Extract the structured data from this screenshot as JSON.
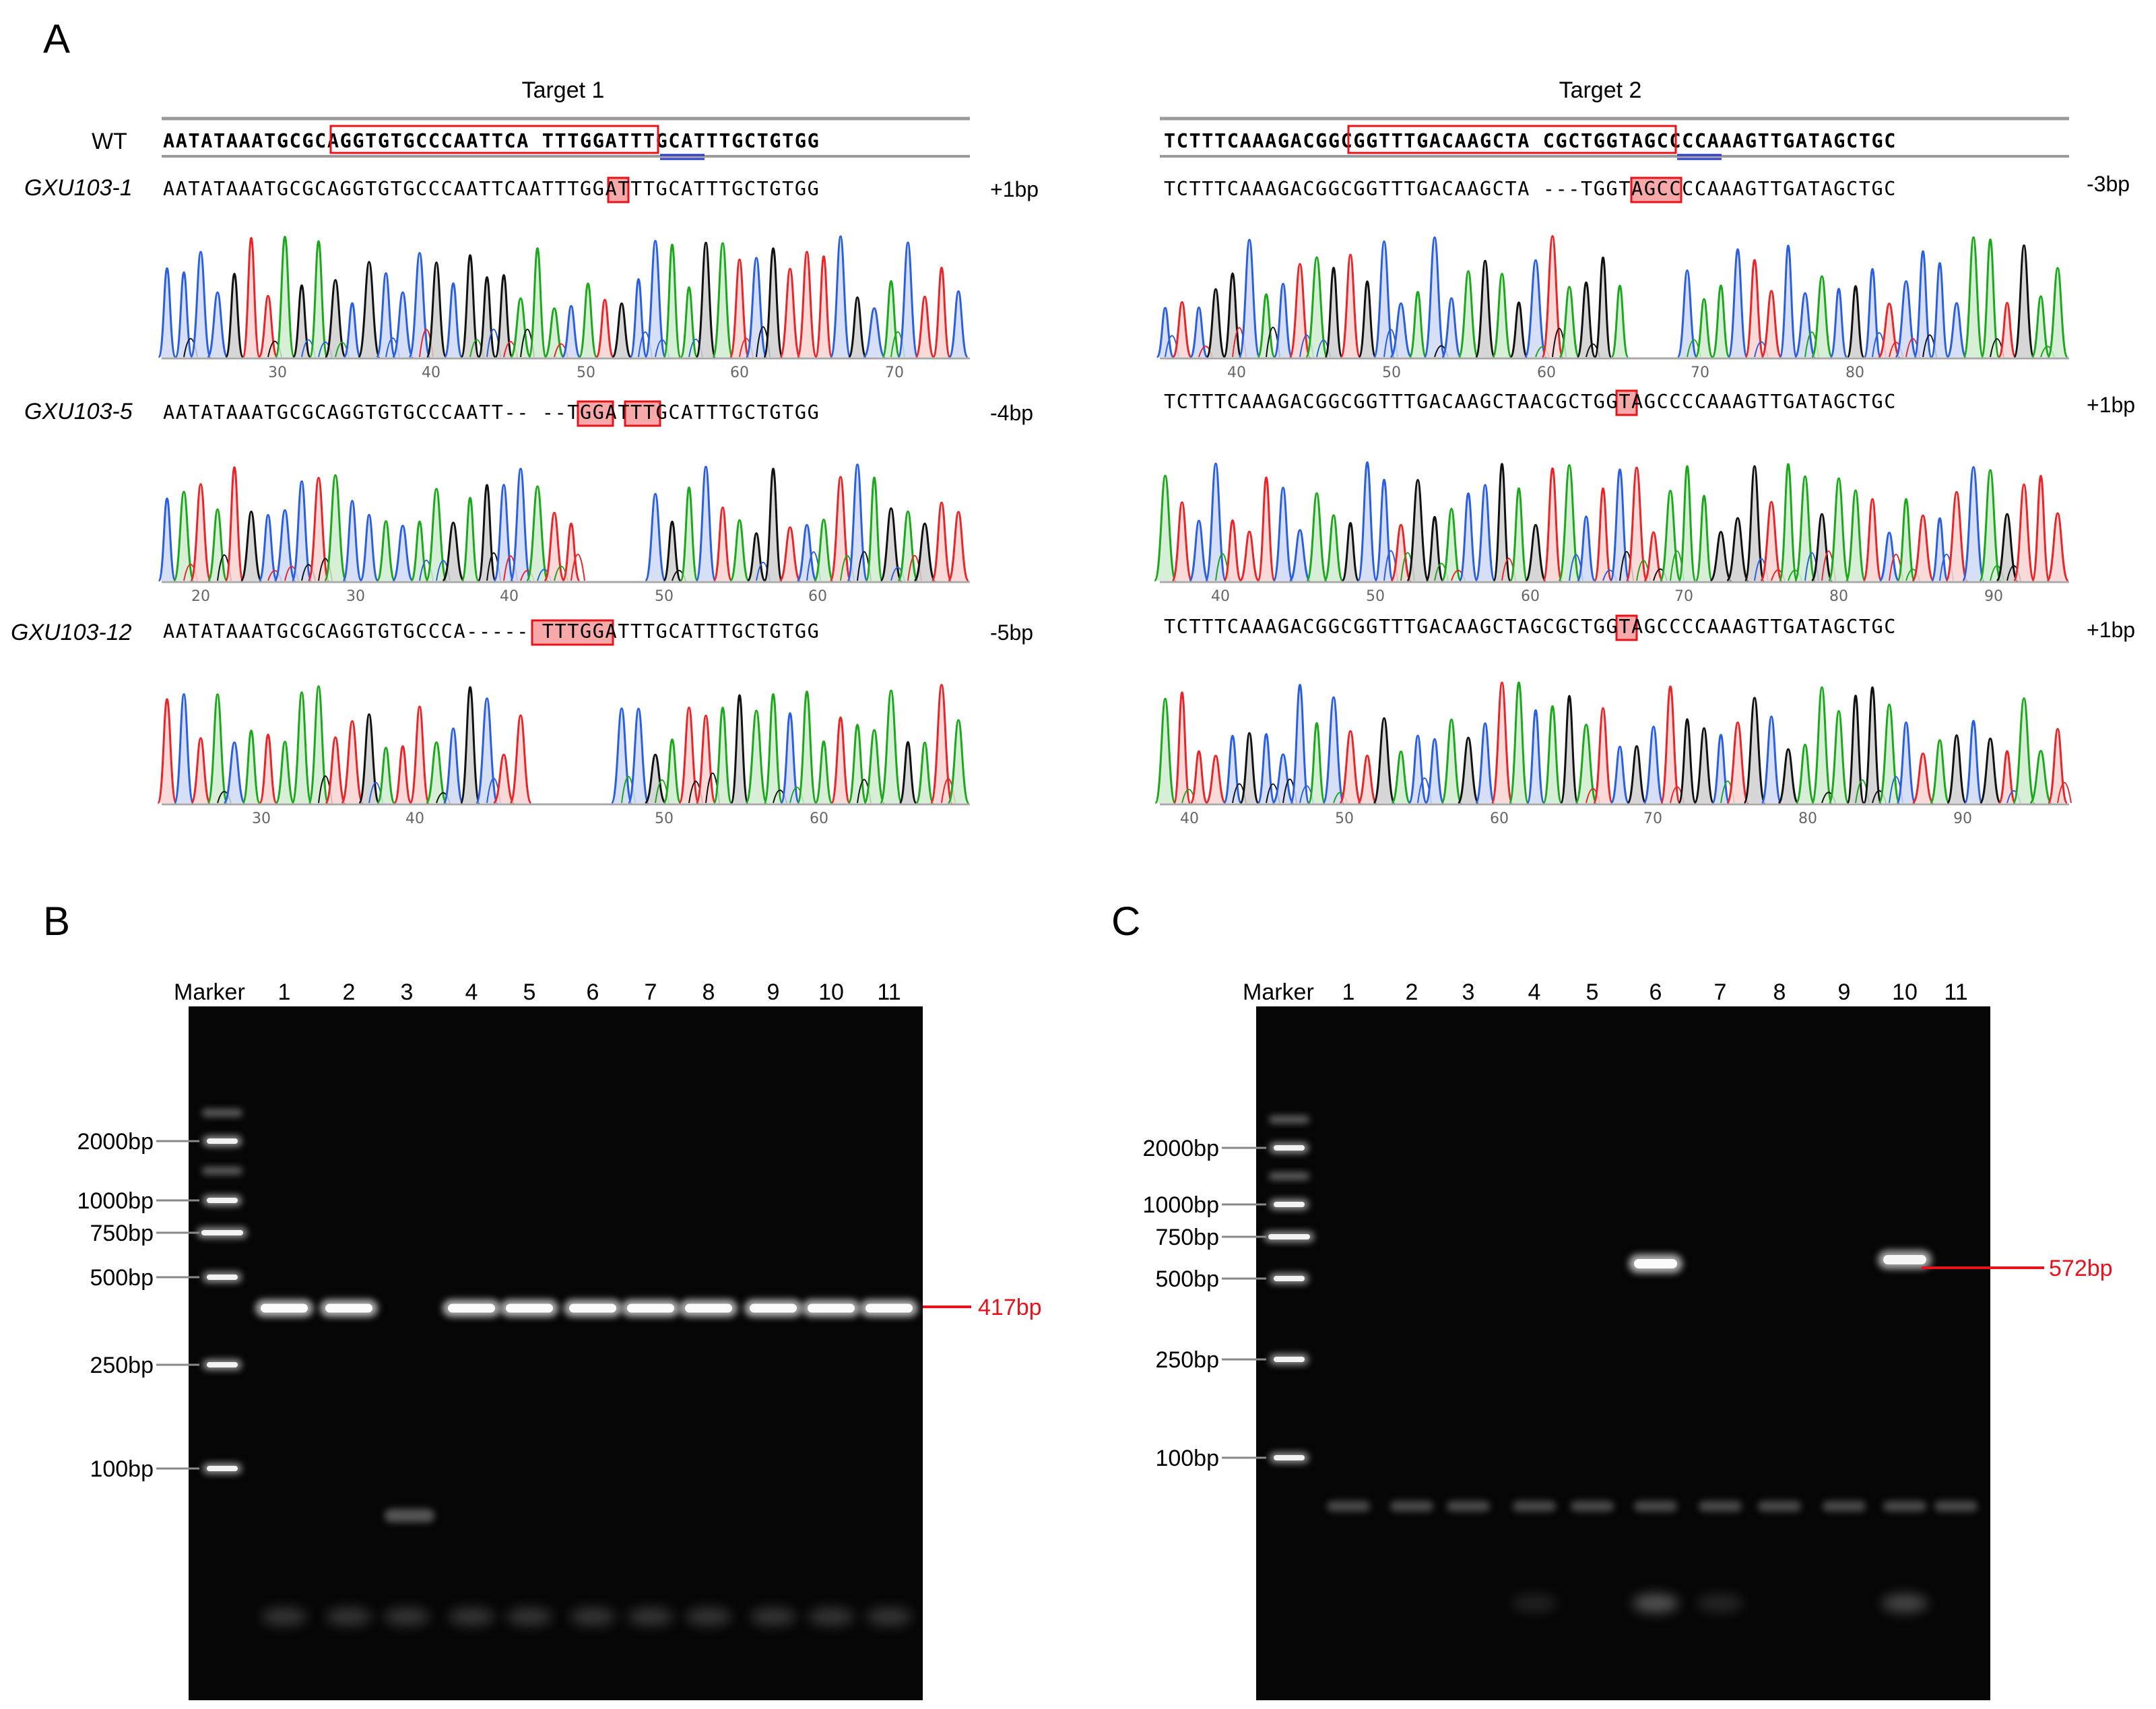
{
  "panels": {
    "a": "A",
    "b": "B",
    "c": "C"
  },
  "target1": {
    "title": "Target 1",
    "wt_label": "WT",
    "wt_seq": "AATATAAATGCGCAGGTGTGCCCAATTCA TTTGGATTTGCATTTGCTGTGG",
    "rows": [
      {
        "label": "GXU103-1",
        "seq": "AATATAAATGCGCAGGTGTGCCCAATTCAATTTGGATTTGCATTTGCTGTGG",
        "change": "+1bp",
        "ticks": [
          "30",
          "40",
          "50",
          "60",
          "70"
        ]
      },
      {
        "label": "GXU103-5",
        "seq": "AATATAAATGCGCAGGTGTGCCCAATT-- --TGGATTTGCATTTGCTGTGG",
        "change": "-4bp",
        "ticks": [
          "20",
          "30",
          "40",
          "50",
          "60"
        ]
      },
      {
        "label": "GXU103-12",
        "seq": "AATATAAATGCGCAGGTGTGCCCA----- TTTGGATTTGCATTTGCTGTGG",
        "change": "-5bp",
        "ticks": [
          "30",
          "40",
          "50",
          "60"
        ]
      }
    ]
  },
  "target2": {
    "title": "Target 2",
    "wt_seq": "TCTTTCAAAGACGGCGGTTTGACAAGCTA CGCTGGTAGCCCCAAAGTTGATAGCTGC",
    "rows": [
      {
        "seq": "TCTTTCAAAGACGGCGGTTTGACAAGCTA ---TGGTAGCCCCAAAGTTGATAGCTGC",
        "change": "-3bp",
        "ticks": [
          "40",
          "50",
          "60",
          "70",
          "80"
        ]
      },
      {
        "seq": "TCTTTCAAAGACGGCGGTTTGACAAGCTAACGCTGGTAGCCCCAAAGTTGATAGCTGC",
        "change": "+1bp",
        "ticks": [
          "40",
          "50",
          "60",
          "70",
          "80",
          "90"
        ]
      },
      {
        "seq": "TCTTTCAAAGACGGCGGTTTGACAAGCTAGCGCTGGTAGCCCCAAAGTTGATAGCTGC",
        "change": "+1bp",
        "ticks": [
          "40",
          "50",
          "60",
          "70",
          "80",
          "90"
        ]
      }
    ]
  },
  "gel_b": {
    "marker_label": "Marker",
    "lanes": [
      "1",
      "2",
      "3",
      "4",
      "5",
      "6",
      "7",
      "8",
      "9",
      "10",
      "11"
    ],
    "ladder": [
      "2000bp",
      "1000bp",
      "750bp",
      "500bp",
      "250bp",
      "100bp"
    ],
    "band_label": "417bp"
  },
  "gel_c": {
    "marker_label": "Marker",
    "lanes": [
      "1",
      "2",
      "3",
      "4",
      "5",
      "6",
      "7",
      "8",
      "9",
      "10",
      "11"
    ],
    "ladder": [
      "2000bp",
      "1000bp",
      "750bp",
      "500bp",
      "250bp",
      "100bp"
    ],
    "band_label": "572bp"
  },
  "colors": {
    "A": "#1ca81c",
    "C": "#2a5fe0",
    "G": "#111111",
    "T": "#e8262a",
    "highlight": "#f7a8a8",
    "outline": "#e8131a",
    "pam": "#2b3ac8"
  }
}
